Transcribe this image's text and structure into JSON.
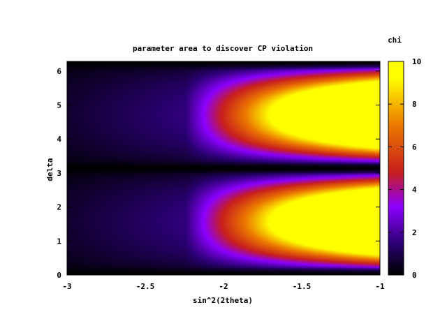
{
  "chart_data": {
    "type": "heatmap",
    "title": "parameter area to discover CP violation",
    "xlabel": "sin^2(2theta)",
    "ylabel": "delta",
    "colorbar_label": "chi",
    "xlim": [
      -3,
      -1
    ],
    "ylim": [
      0,
      6.2832
    ],
    "clim": [
      0,
      10
    ],
    "x_ticks": [
      -3,
      -2.5,
      -2,
      -1.5,
      -1
    ],
    "x_tick_labels": [
      "-3",
      "-2.5",
      "-2",
      "-1.5",
      "-1"
    ],
    "y_ticks": [
      0,
      1,
      2,
      3,
      4,
      5,
      6
    ],
    "y_tick_labels": [
      "0",
      "1",
      "2",
      "3",
      "4",
      "5",
      "6"
    ],
    "c_ticks": [
      0,
      2,
      4,
      6,
      8,
      10
    ],
    "c_tick_labels": [
      "0",
      "2",
      "4",
      "6",
      "8",
      "10"
    ],
    "colormap": "gnuplot-pm3d (black-purple-red-yellow)",
    "colormap_stops": [
      "#000000",
      "#3a0090",
      "#8a00ff",
      "#d02000",
      "#f08000",
      "#ffff00"
    ],
    "grid": false,
    "description_of_field": {
      "x": [
        -3.0,
        -2.5,
        -2.0,
        -1.5,
        -1.0
      ],
      "delta": [
        0.0,
        0.5,
        1.0,
        1.5,
        1.9,
        2.5,
        3.14,
        3.8,
        4.5,
        5.3,
        5.8,
        6.28
      ],
      "chi": [
        [
          0.2,
          0.4,
          0.9,
          1.1,
          1.2,
          0.8,
          0.0,
          0.6,
          1.0,
          1.3,
          0.8,
          0.2
        ],
        [
          0.3,
          1.2,
          1.8,
          2.2,
          2.6,
          1.6,
          0.0,
          1.4,
          2.2,
          3.2,
          2.0,
          0.5
        ],
        [
          0.5,
          2.4,
          3.2,
          4.0,
          5.0,
          3.0,
          0.0,
          2.6,
          3.8,
          6.0,
          3.4,
          1.0
        ],
        [
          0.8,
          5.5,
          9.5,
          10.0,
          10.0,
          6.0,
          0.2,
          5.0,
          9.0,
          10.0,
          7.0,
          2.0
        ],
        [
          1.0,
          9.0,
          10.0,
          10.0,
          10.0,
          8.0,
          0.3,
          6.5,
          10.0,
          10.0,
          10.0,
          3.0
        ]
      ]
    }
  }
}
